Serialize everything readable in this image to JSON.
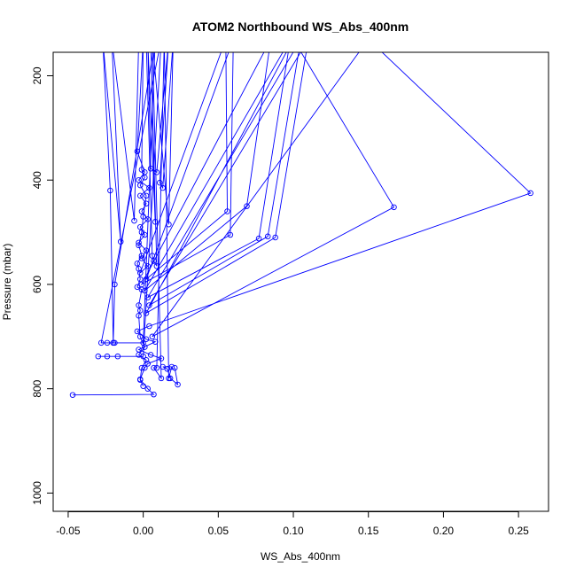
{
  "chart_data": {
    "type": "line",
    "title": "ATOM2 Northbound WS_Abs_400nm",
    "xlabel": "WS_Abs_400nm",
    "ylabel": "Pressure (mbar)",
    "xlim": [
      -0.06,
      0.27
    ],
    "ylim": [
      1035,
      155
    ],
    "y_reversed": true,
    "xticks": [
      -0.05,
      0.0,
      0.05,
      0.1,
      0.15,
      0.2,
      0.25
    ],
    "xtick_labels": [
      "-0.05",
      "0.00",
      "0.05",
      "0.10",
      "0.15",
      "0.20",
      "0.25"
    ],
    "yticks": [
      200,
      400,
      600,
      800,
      1000
    ],
    "ytick_labels": [
      "200",
      "400",
      "600",
      "800",
      "1000"
    ],
    "grid": false,
    "line_color": "#0000ff",
    "series": [
      {
        "points": [
          [
            -0.047,
            812
          ],
          [
            0.007,
            811
          ],
          [
            0.003,
            800
          ],
          [
            -0.002,
            782
          ],
          [
            0.001,
            760
          ],
          [
            0.003,
            752
          ],
          [
            0.012,
            742
          ],
          [
            0.005,
            735
          ],
          [
            -0.003,
            725
          ],
          [
            0.008,
            710
          ],
          [
            0.002,
            705
          ],
          [
            -0.004,
            690
          ],
          [
            0.004,
            680
          ],
          [
            0.258,
            425
          ],
          [
            0.15,
            130
          ],
          [
            0.006,
            700
          ],
          [
            0.167,
            452
          ],
          [
            0.1,
            130
          ],
          [
            0.002,
            655
          ],
          [
            0.088,
            510
          ],
          [
            0.11,
            130
          ],
          [
            0.004,
            640
          ],
          [
            0.083,
            508
          ],
          [
            0.105,
            130
          ],
          [
            0.003,
            625
          ],
          [
            0.077,
            512
          ],
          [
            0.098,
            130
          ],
          [
            0.001,
            612
          ],
          [
            0.069,
            450
          ],
          [
            0.085,
            130
          ],
          [
            -0.001,
            600
          ],
          [
            0.058,
            505
          ],
          [
            0.06,
            130
          ],
          [
            0.002,
            590
          ],
          [
            0.056,
            460
          ],
          [
            0.055,
            130
          ],
          [
            -0.002,
            578
          ],
          [
            0.003,
            565
          ],
          [
            -0.001,
            550
          ],
          [
            0.002,
            535
          ],
          [
            -0.003,
            520
          ],
          [
            0.001,
            505
          ],
          [
            -0.002,
            490
          ],
          [
            0.003,
            475
          ],
          [
            -0.001,
            460
          ],
          [
            0.002,
            445
          ],
          [
            -0.002,
            430
          ],
          [
            0.004,
            415
          ],
          [
            -0.003,
            400
          ],
          [
            0.001,
            385
          ],
          [
            -0.004,
            345
          ],
          [
            0.0,
            130
          ]
        ]
      },
      {
        "points": [
          [
            -0.03,
            738
          ],
          [
            -0.024,
            738
          ],
          [
            -0.017,
            738
          ],
          [
            0.0,
            738
          ],
          [
            0.012,
            130
          ],
          [
            -0.028,
            712
          ],
          [
            -0.024,
            712
          ],
          [
            -0.019,
            712
          ],
          [
            0.0,
            712
          ],
          [
            0.008,
            130
          ],
          [
            -0.019,
            600
          ],
          [
            -0.02,
            712
          ],
          [
            -0.02,
            712
          ],
          [
            -0.022,
            420
          ],
          [
            -0.027,
            130
          ],
          [
            -0.015,
            518
          ],
          [
            -0.021,
            130
          ],
          [
            -0.006,
            478
          ],
          [
            -0.003,
            130
          ]
        ]
      },
      {
        "points": [
          [
            0.021,
            760
          ],
          [
            0.023,
            792
          ],
          [
            0.018,
            780
          ],
          [
            0.016,
            762
          ],
          [
            0.013,
            758
          ],
          [
            0.019,
            758
          ],
          [
            0.017,
            780
          ],
          [
            0.014,
            130
          ],
          [
            0.009,
            760
          ],
          [
            0.007,
            760
          ],
          [
            0.012,
            780
          ],
          [
            0.006,
            130
          ],
          [
            0.017,
            485
          ],
          [
            0.02,
            130
          ],
          [
            0.013,
            415
          ],
          [
            0.011,
            405
          ],
          [
            0.017,
            130
          ],
          [
            0.009,
            385
          ],
          [
            0.005,
            378
          ],
          [
            0.003,
            130
          ],
          [
            0.008,
            480
          ],
          [
            0.005,
            130
          ],
          [
            0.009,
            565
          ],
          [
            0.007,
            555
          ],
          [
            0.006,
            545
          ],
          [
            0.002,
            130
          ]
        ]
      },
      {
        "points": [
          [
            0.0,
            795
          ],
          [
            -0.002,
            783
          ],
          [
            -0.001,
            760
          ],
          [
            0.002,
            745
          ],
          [
            -0.003,
            735
          ],
          [
            0.001,
            720
          ],
          [
            -0.002,
            700
          ],
          [
            -0.003,
            660
          ],
          [
            -0.002,
            650
          ],
          [
            -0.003,
            640
          ],
          [
            -0.001,
            610
          ],
          [
            -0.004,
            605
          ],
          [
            -0.002,
            590
          ],
          [
            -0.003,
            570
          ],
          [
            -0.004,
            560
          ],
          [
            -0.001,
            545
          ],
          [
            -0.003,
            525
          ],
          [
            -0.001,
            500
          ],
          [
            0.0,
            470
          ],
          [
            0.002,
            430
          ],
          [
            -0.002,
            410
          ],
          [
            0.001,
            395
          ],
          [
            -0.001,
            380
          ],
          [
            0.0,
            130
          ]
        ]
      }
    ]
  }
}
